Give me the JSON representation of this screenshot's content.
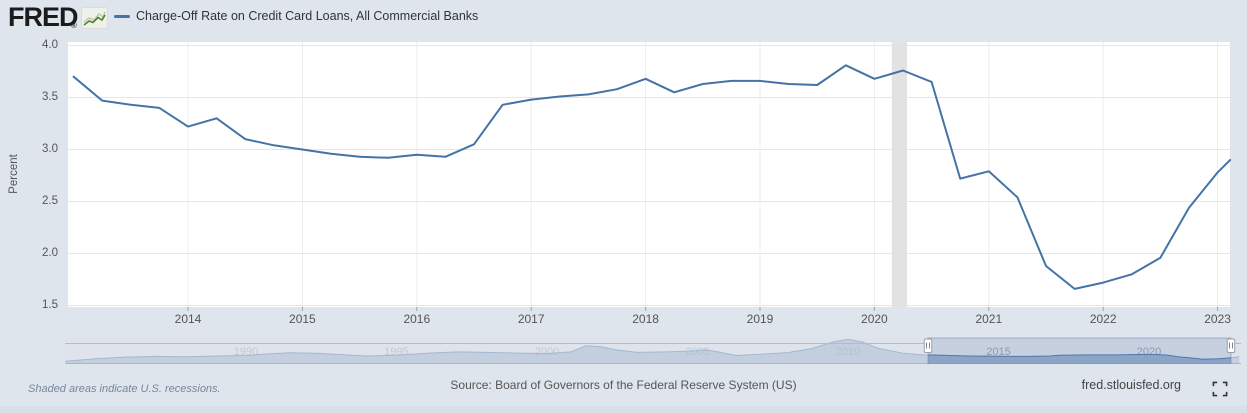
{
  "header": {
    "logo_text": "FRED",
    "logo_registered": "®",
    "legend": {
      "series_label": "Charge-Off Rate on Credit Card Loans, All Commercial Banks"
    }
  },
  "icons": {
    "logo_chart": "sparkline-icon",
    "fullscreen": "fullscreen-icon",
    "navigator_handle": "grip-handle-icon"
  },
  "colors": {
    "page_bg": "#dfe5ec",
    "plot_bg": "#ffffff",
    "grid_horizontal": "#e6e6e6",
    "grid_vertical": "#ededed",
    "recession_band": "#e2e2e2",
    "line": "#4572a7",
    "nav_fill": "rgba(69,114,167,0.48)",
    "nav_outline": "#b6bcc6",
    "nav_axis": "#a9b6c6",
    "nav_mask": "rgba(222,228,236,0.62)",
    "sel_fill": "rgba(110,136,186,0.22)",
    "sel_border": "rgba(110,125,155,0.5)",
    "handle_fill": "#ffffff",
    "handle_border": "#97a1ab",
    "tick_color": "#9aa4ae",
    "logo_green_dark": "#4e7f35",
    "logo_green_light": "#b4c99a"
  },
  "chart_data": {
    "type": "line",
    "title": "Charge-Off Rate on Credit Card Loans, All Commercial Banks",
    "ylabel": "Percent",
    "ylim": [
      1.5,
      4.0
    ],
    "grid": true,
    "y_ticks": [
      4.0,
      3.5,
      3.0,
      2.5,
      2.0,
      1.5
    ],
    "x_ticks": [
      2014,
      2015,
      2016,
      2017,
      2018,
      2019,
      2020,
      2021,
      2022,
      2023
    ],
    "x_range": [
      2012.99,
      2023.11
    ],
    "recession_bands": [
      [
        2020.15,
        2020.28
      ]
    ],
    "series": {
      "name": "Charge-Off Rate on Credit Card Loans, All Commercial Banks",
      "unit": "Percent",
      "frequency": "quarterly",
      "points": [
        [
          2013.0,
          3.7
        ],
        [
          2013.25,
          3.47
        ],
        [
          2013.5,
          3.43
        ],
        [
          2013.75,
          3.4
        ],
        [
          2014.0,
          3.22
        ],
        [
          2014.25,
          3.3
        ],
        [
          2014.5,
          3.1
        ],
        [
          2014.75,
          3.04
        ],
        [
          2015.0,
          3.0
        ],
        [
          2015.25,
          2.96
        ],
        [
          2015.5,
          2.93
        ],
        [
          2015.75,
          2.92
        ],
        [
          2016.0,
          2.95
        ],
        [
          2016.25,
          2.93
        ],
        [
          2016.5,
          3.05
        ],
        [
          2016.75,
          3.43
        ],
        [
          2017.0,
          3.48
        ],
        [
          2017.25,
          3.51
        ],
        [
          2017.5,
          3.53
        ],
        [
          2017.75,
          3.58
        ],
        [
          2018.0,
          3.68
        ],
        [
          2018.25,
          3.55
        ],
        [
          2018.5,
          3.63
        ],
        [
          2018.75,
          3.66
        ],
        [
          2019.0,
          3.66
        ],
        [
          2019.25,
          3.63
        ],
        [
          2019.5,
          3.62
        ],
        [
          2019.75,
          3.81
        ],
        [
          2020.0,
          3.68
        ],
        [
          2020.25,
          3.76
        ],
        [
          2020.5,
          3.65
        ],
        [
          2020.75,
          2.72
        ],
        [
          2021.0,
          2.79
        ],
        [
          2021.25,
          2.54
        ],
        [
          2021.5,
          1.88
        ],
        [
          2021.75,
          1.66
        ],
        [
          2022.0,
          1.72
        ],
        [
          2022.25,
          1.8
        ],
        [
          2022.5,
          1.96
        ],
        [
          2022.75,
          2.44
        ],
        [
          2023.0,
          2.78
        ],
        [
          2023.11,
          2.9
        ]
      ]
    },
    "navigator": {
      "x_labels": [
        1990,
        1995,
        2000,
        2005,
        2010,
        2015,
        2020
      ],
      "range": [
        1984.0,
        2023.1
      ],
      "selected": [
        2013.0,
        2023.11
      ],
      "ylim": [
        0,
        10.6
      ],
      "series": [
        [
          1984.0,
          0.8
        ],
        [
          1985,
          1.9
        ],
        [
          1986,
          2.6
        ],
        [
          1987,
          2.9
        ],
        [
          1988,
          2.8
        ],
        [
          1989,
          3.1
        ],
        [
          1990,
          3.3
        ],
        [
          1990.8,
          4.1
        ],
        [
          1991.5,
          4.5
        ],
        [
          1992.3,
          4.3
        ],
        [
          1993.2,
          3.7
        ],
        [
          1994,
          3.1
        ],
        [
          1995,
          3.4
        ],
        [
          1996,
          4.3
        ],
        [
          1997,
          4.9
        ],
        [
          1998,
          4.7
        ],
        [
          1999,
          4.4
        ],
        [
          2000,
          4.2
        ],
        [
          2000.8,
          4.9
        ],
        [
          2001.3,
          7.6
        ],
        [
          2001.8,
          7.2
        ],
        [
          2002.3,
          5.8
        ],
        [
          2003,
          4.7
        ],
        [
          2004,
          4.9
        ],
        [
          2004.8,
          5.3
        ],
        [
          2005.3,
          5.9
        ],
        [
          2005.8,
          4.6
        ],
        [
          2006.3,
          3.3
        ],
        [
          2007,
          3.8
        ],
        [
          2008,
          4.6
        ],
        [
          2008.8,
          6.4
        ],
        [
          2009.5,
          9.3
        ],
        [
          2010,
          10.5
        ],
        [
          2010.5,
          9.2
        ],
        [
          2011,
          6.5
        ],
        [
          2011.8,
          4.4
        ],
        [
          2012.5,
          3.6
        ],
        [
          2013,
          3.5
        ],
        [
          2014,
          3.1
        ],
        [
          2015,
          2.95
        ],
        [
          2016,
          2.9
        ],
        [
          2016.7,
          3.1
        ],
        [
          2017,
          3.4
        ],
        [
          2018,
          3.6
        ],
        [
          2019,
          3.6
        ],
        [
          2019.8,
          3.8
        ],
        [
          2020.3,
          3.7
        ],
        [
          2020.6,
          3.5
        ],
        [
          2021,
          2.7
        ],
        [
          2021.3,
          2.4
        ],
        [
          2021.8,
          1.7
        ],
        [
          2022.3,
          1.9
        ],
        [
          2022.8,
          2.4
        ],
        [
          2023.0,
          2.85
        ]
      ]
    },
    "legend_position": "top-left"
  },
  "footer": {
    "note": "Shaded areas indicate U.S. recessions.",
    "source": "Source: Board of Governors of the Federal Reserve System (US)",
    "site": "fred.stlouisfed.org"
  }
}
